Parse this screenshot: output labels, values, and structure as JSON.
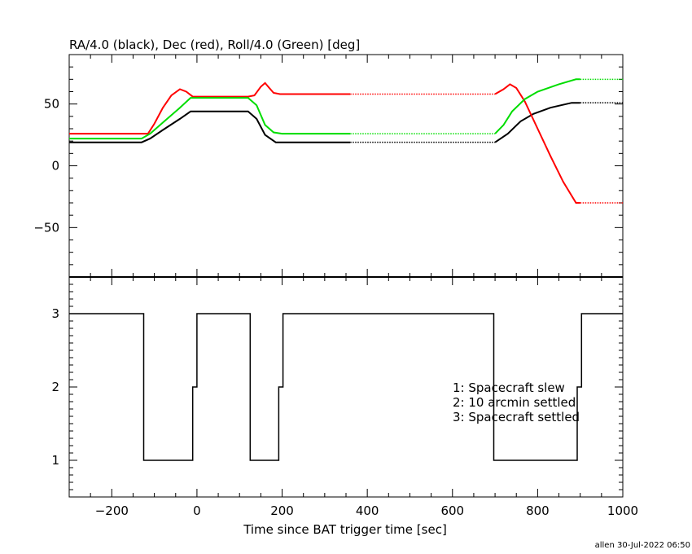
{
  "chart_data": [
    {
      "type": "line",
      "title": "RA/4.0 (black), Dec (red), Roll/4.0 (Green) [deg]",
      "xlim": [
        -300,
        1000
      ],
      "ylim": [
        -90,
        90
      ],
      "y_ticks": [
        50,
        0,
        -50
      ],
      "y_tick_labels": [
        "50",
        "0",
        "−50"
      ],
      "series": [
        {
          "color": "#000000",
          "points": [
            [
              -300,
              19
            ],
            [
              -130,
              19
            ],
            [
              -110,
              22
            ],
            [
              -80,
              29
            ],
            [
              -40,
              38
            ],
            [
              -15,
              44
            ],
            [
              0,
              44
            ],
            [
              50,
              44
            ],
            [
              120,
              44
            ],
            [
              140,
              38
            ],
            [
              160,
              25
            ],
            [
              185,
              19
            ],
            [
              360,
              19
            ],
            [
              700,
              19
            ],
            [
              730,
              26
            ],
            [
              760,
              36
            ],
            [
              790,
              42
            ],
            [
              830,
              47
            ],
            [
              880,
              51
            ],
            [
              900,
              51
            ],
            [
              1000,
              51
            ]
          ],
          "dashed_from": 360,
          "dashed_to": 700,
          "dashed_after": 900
        },
        {
          "color": "#ff0000",
          "points": [
            [
              -300,
              26
            ],
            [
              -115,
              26
            ],
            [
              -100,
              34
            ],
            [
              -80,
              47
            ],
            [
              -60,
              57
            ],
            [
              -40,
              62
            ],
            [
              -25,
              60
            ],
            [
              -10,
              56
            ],
            [
              0,
              56
            ],
            [
              120,
              56
            ],
            [
              135,
              57
            ],
            [
              150,
              64
            ],
            [
              160,
              67
            ],
            [
              170,
              63
            ],
            [
              180,
              59
            ],
            [
              195,
              58
            ],
            [
              360,
              58
            ],
            [
              700,
              58
            ],
            [
              720,
              62
            ],
            [
              735,
              66
            ],
            [
              750,
              63
            ],
            [
              770,
              52
            ],
            [
              800,
              30
            ],
            [
              830,
              8
            ],
            [
              860,
              -13
            ],
            [
              890,
              -30
            ],
            [
              900,
              -30
            ],
            [
              1000,
              -30
            ]
          ],
          "dashed_from": 360,
          "dashed_to": 700,
          "dashed_after": 900
        },
        {
          "color": "#00dd00",
          "points": [
            [
              -300,
              22
            ],
            [
              -130,
              22
            ],
            [
              -110,
              26
            ],
            [
              -80,
              35
            ],
            [
              -40,
              47
            ],
            [
              -15,
              55
            ],
            [
              0,
              55
            ],
            [
              120,
              55
            ],
            [
              140,
              49
            ],
            [
              160,
              33
            ],
            [
              180,
              27
            ],
            [
              200,
              26
            ],
            [
              360,
              26
            ],
            [
              700,
              26
            ],
            [
              720,
              33
            ],
            [
              740,
              44
            ],
            [
              770,
              54
            ],
            [
              800,
              60
            ],
            [
              850,
              66
            ],
            [
              890,
              70
            ],
            [
              900,
              70
            ],
            [
              1000,
              70
            ]
          ],
          "dashed_from": 360,
          "dashed_to": 700,
          "dashed_after": 900
        }
      ]
    },
    {
      "type": "line",
      "title": "",
      "xlabel": "Time since BAT trigger time [sec]",
      "xlim": [
        -300,
        1000
      ],
      "ylim": [
        0.5,
        3.5
      ],
      "x_ticks": [
        -200,
        0,
        200,
        400,
        600,
        800,
        1000
      ],
      "x_tick_labels": [
        "−200",
        "0",
        "200",
        "400",
        "600",
        "800",
        "1000"
      ],
      "y_ticks": [
        3,
        2,
        1
      ],
      "y_tick_labels": [
        "3",
        "2",
        "1"
      ],
      "series": [
        {
          "color": "#000000",
          "step_points": [
            [
              -300,
              3
            ],
            [
              -125,
              3
            ],
            [
              -125,
              1
            ],
            [
              -10,
              1
            ],
            [
              -10,
              2
            ],
            [
              0,
              2
            ],
            [
              0,
              3
            ],
            [
              125,
              3
            ],
            [
              125,
              1
            ],
            [
              192,
              1
            ],
            [
              192,
              2
            ],
            [
              202,
              2
            ],
            [
              202,
              3
            ],
            [
              697,
              3
            ],
            [
              697,
              1
            ],
            [
              893,
              1
            ],
            [
              893,
              2
            ],
            [
              903,
              2
            ],
            [
              903,
              3
            ],
            [
              1000,
              3
            ]
          ]
        }
      ],
      "legend_lines": [
        "1: Spacecraft slew",
        "2: 10 arcmin settled",
        "3: Spacecraft settled"
      ]
    }
  ],
  "footer": "allen 30-Jul-2022 06:50"
}
